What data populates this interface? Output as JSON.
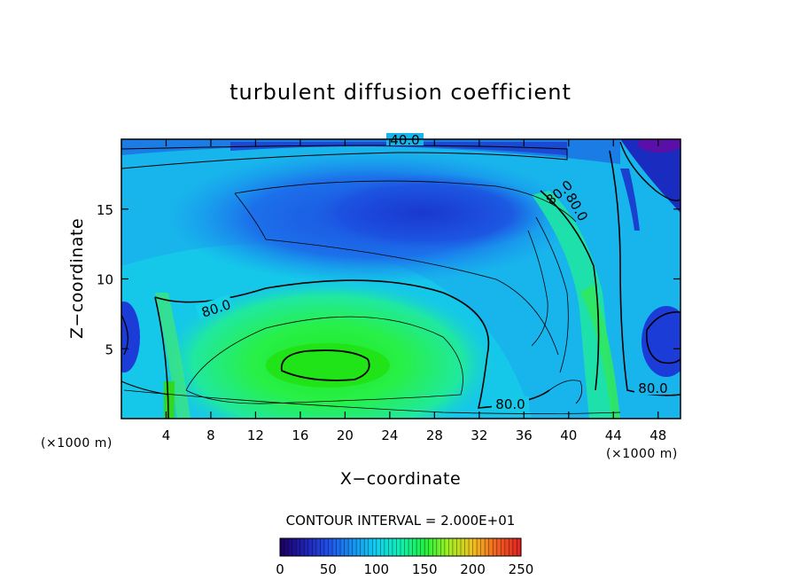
{
  "chart_data": {
    "type": "heatmap",
    "title": "turbulent diffusion coefficient",
    "xlabel": "X−coordinate",
    "ylabel": "Z−coordinate",
    "x_unit": "(×1000 m)",
    "y_unit": "(×1000 m)",
    "xlim": [
      0,
      50
    ],
    "ylim": [
      0,
      20
    ],
    "x_ticks": [
      4,
      8,
      12,
      16,
      20,
      24,
      28,
      32,
      36,
      40,
      44,
      48
    ],
    "y_ticks": [
      5,
      10,
      15
    ],
    "contour_interval_text": "CONTOUR INTERVAL = 2.000E+01",
    "contour_labels": [
      "40.0",
      "80.0",
      "80.0",
      "80.0",
      "80.0",
      "80.0"
    ],
    "colorbar": {
      "range": [
        0,
        250
      ],
      "ticks": [
        0,
        50,
        100,
        150,
        200,
        250
      ],
      "colors": [
        "#1a0060",
        "#1f1fb0",
        "#2050e8",
        "#1890f0",
        "#10d0f0",
        "#10f0b0",
        "#20f040",
        "#a0f020",
        "#f0c020",
        "#f06020",
        "#e02020"
      ]
    },
    "field_samples": [
      {
        "x": 18,
        "z": 3.8,
        "value": 120
      },
      {
        "x": 8,
        "z": 5,
        "value": 90
      },
      {
        "x": 26,
        "z": 15,
        "value": 40
      },
      {
        "x": 42,
        "z": 4,
        "value": 110
      },
      {
        "x": 48,
        "z": 5,
        "value": 35
      },
      {
        "x": 46,
        "z": 19.5,
        "value": 10
      },
      {
        "x": 2,
        "z": 16,
        "value": 55
      }
    ]
  }
}
